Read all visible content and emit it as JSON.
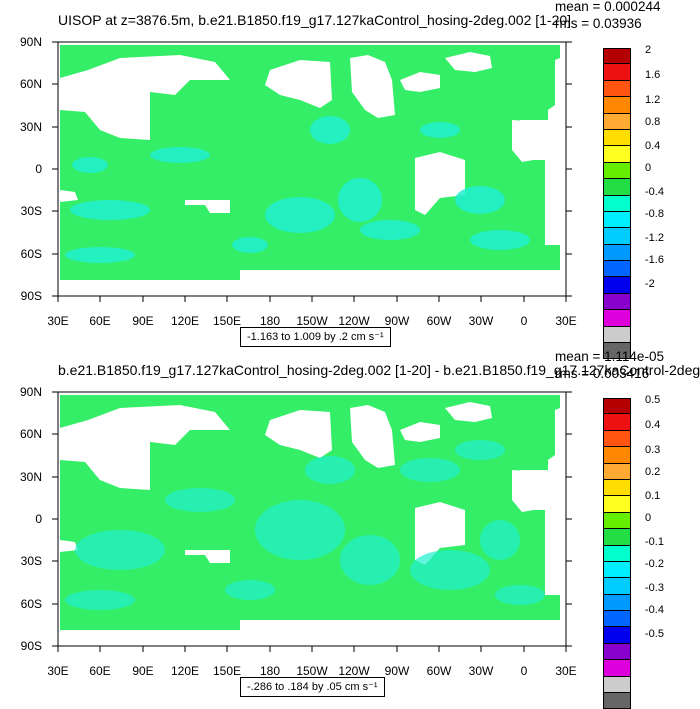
{
  "panels": [
    {
      "title": "UISOP at z=3876.5m, b.e21.B1850.f19_g17.127kaControl_hosing-2deg.002 [1-20]",
      "mean": "mean = 0.000244",
      "rms": "rms = 0.03936",
      "range_label": "-1.163 to 1.009 by .2 cm s⁻¹",
      "colorbar_labels": [
        "2",
        "1.6",
        "1.2",
        "0.8",
        "0.4",
        "0",
        "-0.4",
        "-0.8",
        "-1.2",
        "-1.6",
        "-2"
      ]
    },
    {
      "title": "b.e21.B1850.f19_g17.127kaControl_hosing-2deg.002 [1-20] - b.e21.B1850.f19_g17.127kaControl-2deg.",
      "mean": "mean = 1.114e-05",
      "rms": "rms = 0.003416",
      "range_label": "-.286 to .184 by .05 cm s⁻¹",
      "colorbar_labels": [
        "0.5",
        "0.4",
        "0.3",
        "0.2",
        "0.1",
        "0",
        "-0.1",
        "-0.2",
        "-0.3",
        "-0.4",
        "-0.5"
      ]
    }
  ],
  "axes": {
    "y_ticks": [
      "90N",
      "60N",
      "30N",
      "0",
      "30S",
      "60S",
      "90S"
    ],
    "x_ticks": [
      "30E",
      "60E",
      "90E",
      "120E",
      "150E",
      "180",
      "150W",
      "120W",
      "90W",
      "60W",
      "30W",
      "0",
      "30E"
    ]
  },
  "colors": {
    "ocean_fill": "#33ee66",
    "speckle": "#22f0d0",
    "land": "#ffffff",
    "colorbar": [
      "#b40000",
      "#ee1111",
      "#ff5511",
      "#ff8800",
      "#ffaa33",
      "#ffdd00",
      "#ffff22",
      "#66ee00",
      "#22dd44",
      "#00ffcc",
      "#00eeff",
      "#00ccff",
      "#0099ff",
      "#0066ff",
      "#0000ee",
      "#8800cc",
      "#dd00dd",
      "#cccccc",
      "#666666"
    ]
  }
}
